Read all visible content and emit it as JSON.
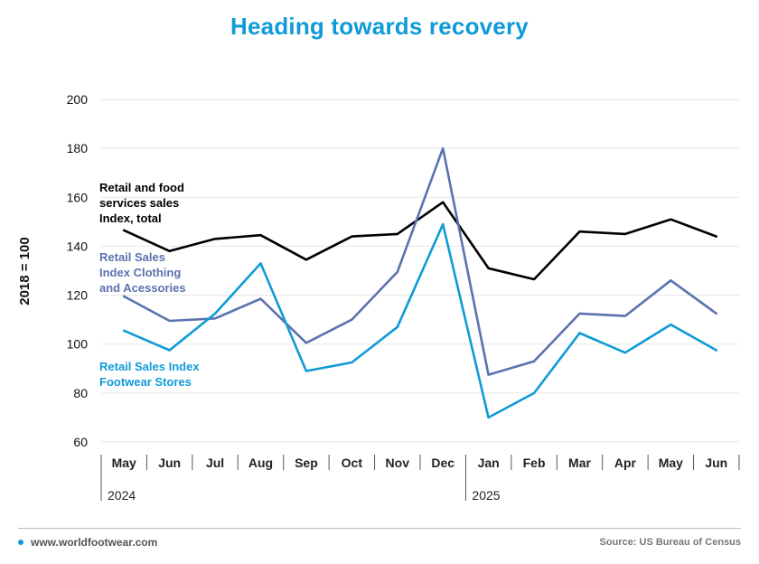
{
  "title": "Heading towards recovery",
  "footer": {
    "site": "www.worldfootwear.com",
    "source": "Source: US Bureau of Census"
  },
  "colors": {
    "title": "#0f9bd7",
    "accent_dot": "#0f9bd7"
  },
  "chart_data": {
    "type": "line",
    "title": "Heading towards recovery",
    "ylabel": "2018 = 100",
    "xlabel": "",
    "ylim": [
      60,
      200
    ],
    "yticks": [
      60,
      80,
      100,
      120,
      140,
      160,
      180,
      200
    ],
    "grid": true,
    "categories": [
      "May",
      "Jun",
      "Jul",
      "Aug",
      "Sep",
      "Oct",
      "Nov",
      "Dec",
      "Jan",
      "Feb",
      "Mar",
      "Apr",
      "May",
      "Jun"
    ],
    "years": [
      {
        "label": "2024",
        "start_index": 0
      },
      {
        "label": "2025",
        "start_index": 8
      }
    ],
    "series": [
      {
        "name": "Retail and food services sales Index, total",
        "label_lines": [
          "Retail and food",
          "services sales",
          "Index, total"
        ],
        "color": "#000000",
        "values": [
          146.5,
          138,
          143,
          144.5,
          134.5,
          144,
          145,
          158,
          131,
          126.5,
          146,
          145,
          151,
          144
        ]
      },
      {
        "name": "Retail Sales Index Clothing and Acessories",
        "label_lines": [
          "Retail Sales",
          "Index Clothing",
          "and Acessories"
        ],
        "color": "#5b72ae",
        "values": [
          119.5,
          109.5,
          110.5,
          118.5,
          100.5,
          110,
          129.5,
          180,
          87.5,
          93,
          112.5,
          111.5,
          126,
          112.5
        ]
      },
      {
        "name": "Retail Sales Index Footwear Stores",
        "label_lines": [
          "Retail Sales Index",
          "Footwear Stores"
        ],
        "color": "#0f9bd7",
        "values": [
          105.5,
          97.5,
          112.5,
          133,
          89,
          92.5,
          107,
          149,
          70,
          80,
          104.5,
          96.5,
          108,
          97.5
        ]
      }
    ]
  }
}
